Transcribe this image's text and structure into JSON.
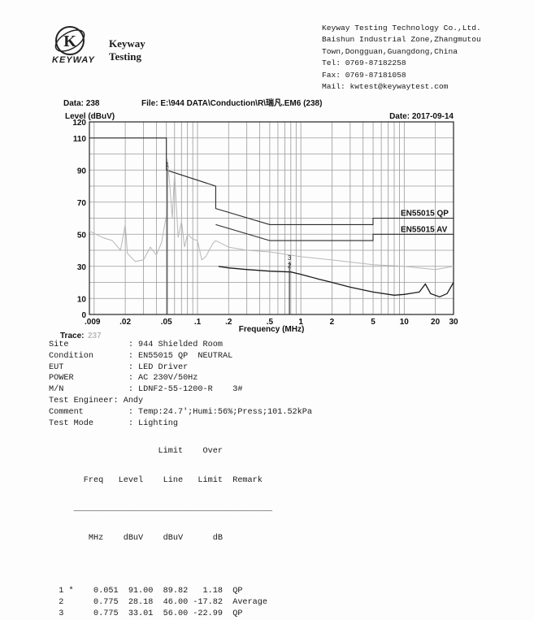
{
  "company": {
    "logo_letter": "K",
    "logo_word": "KEYWAY",
    "brand_line1": "Keyway",
    "brand_line2": "Testing",
    "name": "Keyway Testing Technology Co.,Ltd.",
    "address1": "Baishun Industrial Zone,Zhangmutou",
    "address2": "Town,Dongguan,Guangdong,China",
    "tel": "Tel: 0769-87182258",
    "fax": "Fax: 0769-87181058",
    "mail": "Mail: kwtest@keywaytest.com"
  },
  "report_header": {
    "data_label": "Data: 238",
    "file_label": "File: E:\\944 DATA\\Conduction\\R\\瑞凡.EM6  (238)",
    "date_label": "Date: 2017-09-14",
    "trace_label": "Trace:",
    "trace_value": "237"
  },
  "chart_data": {
    "type": "line",
    "xlabel": "Frequency (MHz)",
    "ylabel": "Level (dBuV)",
    "xscale": "log",
    "xlim": [
      0.009,
      30
    ],
    "ylim": [
      0,
      120
    ],
    "x_ticks": [
      ".009",
      ".02",
      ".05",
      ".1",
      ".2",
      ".5",
      "1",
      "2",
      "5",
      "10",
      "20",
      "30"
    ],
    "y_ticks": [
      "0",
      "10",
      "30",
      "50",
      "70",
      "90",
      "110",
      "120"
    ],
    "series": [
      {
        "name": "EN55015 QP",
        "role": "limit",
        "points": [
          [
            0.009,
            110
          ],
          [
            0.05,
            110
          ],
          [
            0.05,
            90
          ],
          [
            0.15,
            80
          ],
          [
            0.15,
            66
          ],
          [
            0.5,
            56
          ],
          [
            5,
            56
          ],
          [
            5,
            60
          ],
          [
            30,
            60
          ]
        ]
      },
      {
        "name": "EN55015 AV",
        "role": "limit",
        "points": [
          [
            0.15,
            56
          ],
          [
            0.5,
            46
          ],
          [
            5,
            46
          ],
          [
            5,
            50
          ],
          [
            30,
            50
          ]
        ]
      },
      {
        "role": "scan-peak",
        "points": [
          [
            0.009,
            52
          ],
          [
            0.012,
            48
          ],
          [
            0.015,
            46
          ],
          [
            0.018,
            40
          ],
          [
            0.02,
            56
          ],
          [
            0.021,
            38
          ],
          [
            0.025,
            33
          ],
          [
            0.03,
            34
          ],
          [
            0.035,
            42
          ],
          [
            0.04,
            37
          ],
          [
            0.045,
            45
          ],
          [
            0.05,
            62
          ],
          [
            0.051,
            97
          ],
          [
            0.054,
            80
          ],
          [
            0.057,
            60
          ],
          [
            0.06,
            88
          ],
          [
            0.065,
            48
          ],
          [
            0.07,
            58
          ],
          [
            0.075,
            42
          ],
          [
            0.08,
            50
          ],
          [
            0.09,
            47
          ],
          [
            0.1,
            46
          ],
          [
            0.11,
            34
          ],
          [
            0.12,
            36
          ],
          [
            0.14,
            44
          ],
          [
            0.15,
            46
          ],
          [
            0.2,
            42
          ],
          [
            0.3,
            40
          ],
          [
            0.5,
            39
          ],
          [
            1,
            36
          ],
          [
            2,
            34
          ],
          [
            5,
            31
          ],
          [
            10,
            30
          ],
          [
            20,
            28
          ],
          [
            30,
            30
          ]
        ]
      },
      {
        "role": "scan-average",
        "points": [
          [
            0.16,
            30
          ],
          [
            0.2,
            29
          ],
          [
            0.3,
            28
          ],
          [
            0.5,
            27
          ],
          [
            0.8,
            26.5
          ],
          [
            1,
            25
          ],
          [
            1.5,
            22
          ],
          [
            2,
            20
          ],
          [
            3,
            17
          ],
          [
            5,
            14
          ],
          [
            8,
            12
          ],
          [
            10,
            12.5
          ],
          [
            14,
            14
          ],
          [
            16,
            19
          ],
          [
            18,
            13
          ],
          [
            22,
            11
          ],
          [
            26,
            13
          ],
          [
            30,
            20
          ]
        ]
      }
    ],
    "markers": [
      {
        "label": "1",
        "x": 0.051,
        "y": 91.0
      },
      {
        "label": "2",
        "x": 0.775,
        "y": 28.18
      },
      {
        "label": "3",
        "x": 0.775,
        "y": 33.01
      }
    ]
  },
  "info_lines": [
    "Site            : 944 Shielded Room",
    "Condition       : EN55015 QP  NEUTRAL",
    "EUT             : LED Driver",
    "POWER           : AC 230V/50Hz",
    "M/N             : LDNF2-55-1200-R    3#",
    "Test Engineer: Andy",
    "Comment         : Temp:24.7';Humi:56%;Press;101.52kPa",
    "Test Mode       : Lighting"
  ],
  "table": {
    "header1": "                      Limit    Over",
    "header2": "       Freq   Level    Line   Limit  Remark",
    "rule": "     ________________________________________",
    "units": "        MHz    dBuV    dBuV      dB",
    "rows": [
      "  1 *    0.051  91.00  89.82   1.18  QP",
      "  2      0.775  28.18  46.00 -17.82  Average",
      "  3      0.775  33.01  56.00 -22.99  QP"
    ]
  }
}
